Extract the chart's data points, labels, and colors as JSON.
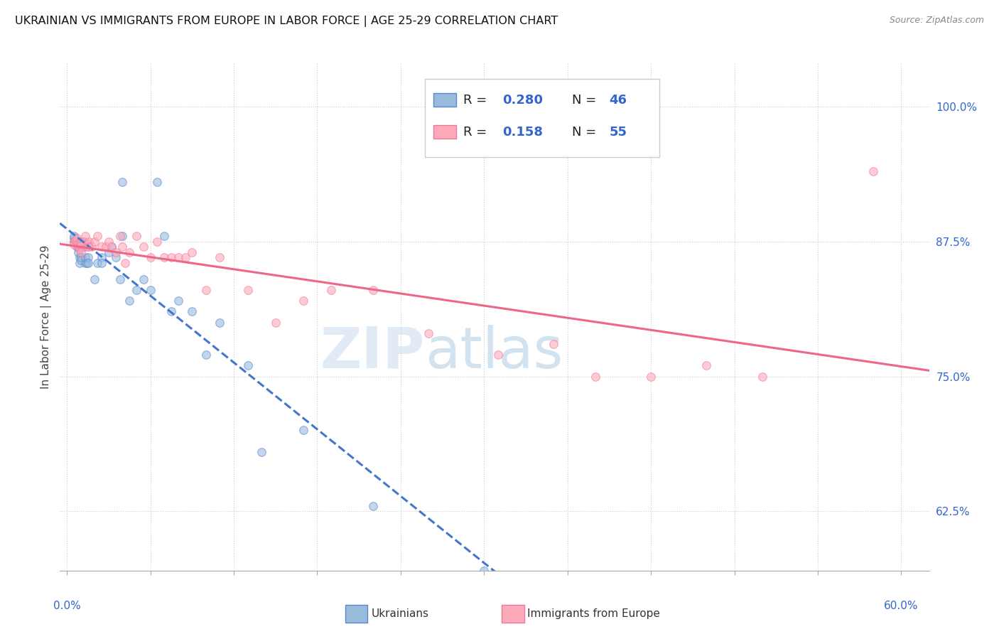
{
  "title": "UKRAINIAN VS IMMIGRANTS FROM EUROPE IN LABOR FORCE | AGE 25-29 CORRELATION CHART",
  "source": "Source: ZipAtlas.com",
  "ylabel": "In Labor Force | Age 25-29",
  "ylim": [
    0.57,
    1.04
  ],
  "xlim": [
    -0.005,
    0.62
  ],
  "legend_r1": "0.280",
  "legend_n1": "46",
  "legend_r2": "0.158",
  "legend_n2": "55",
  "blue_face_color": "#99bbdd",
  "blue_edge_color": "#5588cc",
  "pink_face_color": "#ffaabb",
  "pink_edge_color": "#ee7799",
  "blue_line_color": "#4477cc",
  "pink_line_color": "#ee6688",
  "text_blue": "#3366cc",
  "ukrainians_x": [
    0.005,
    0.005,
    0.005,
    0.007,
    0.007,
    0.008,
    0.008,
    0.008,
    0.009,
    0.009,
    0.01,
    0.01,
    0.01,
    0.012,
    0.012,
    0.013,
    0.013,
    0.014,
    0.015,
    0.015,
    0.02,
    0.022,
    0.025,
    0.025,
    0.03,
    0.032,
    0.035,
    0.038,
    0.04,
    0.04,
    0.045,
    0.05,
    0.055,
    0.06,
    0.065,
    0.07,
    0.075,
    0.08,
    0.09,
    0.1,
    0.11,
    0.13,
    0.14,
    0.17,
    0.22,
    0.3
  ],
  "ukrainians_y": [
    0.875,
    0.878,
    0.88,
    0.875,
    0.87,
    0.865,
    0.87,
    0.872,
    0.855,
    0.86,
    0.86,
    0.858,
    0.87,
    0.87,
    0.875,
    0.855,
    0.86,
    0.855,
    0.86,
    0.855,
    0.84,
    0.855,
    0.86,
    0.855,
    0.865,
    0.87,
    0.86,
    0.84,
    0.93,
    0.88,
    0.82,
    0.83,
    0.84,
    0.83,
    0.93,
    0.88,
    0.81,
    0.82,
    0.81,
    0.77,
    0.8,
    0.76,
    0.68,
    0.7,
    0.63,
    0.57
  ],
  "europe_x": [
    0.005,
    0.005,
    0.006,
    0.007,
    0.007,
    0.008,
    0.008,
    0.009,
    0.009,
    0.01,
    0.01,
    0.01,
    0.01,
    0.012,
    0.013,
    0.014,
    0.015,
    0.016,
    0.016,
    0.018,
    0.02,
    0.022,
    0.025,
    0.028,
    0.03,
    0.032,
    0.035,
    0.038,
    0.04,
    0.042,
    0.045,
    0.05,
    0.055,
    0.06,
    0.065,
    0.07,
    0.075,
    0.08,
    0.085,
    0.09,
    0.1,
    0.11,
    0.13,
    0.15,
    0.17,
    0.19,
    0.22,
    0.26,
    0.31,
    0.35,
    0.38,
    0.42,
    0.46,
    0.5,
    0.58
  ],
  "europe_y": [
    0.875,
    0.872,
    0.876,
    0.875,
    0.878,
    0.87,
    0.873,
    0.875,
    0.868,
    0.875,
    0.87,
    0.865,
    0.872,
    0.875,
    0.88,
    0.87,
    0.873,
    0.875,
    0.87,
    0.87,
    0.875,
    0.88,
    0.87,
    0.87,
    0.875,
    0.87,
    0.865,
    0.88,
    0.87,
    0.855,
    0.865,
    0.88,
    0.87,
    0.86,
    0.875,
    0.86,
    0.86,
    0.86,
    0.86,
    0.865,
    0.83,
    0.86,
    0.83,
    0.8,
    0.82,
    0.83,
    0.83,
    0.79,
    0.77,
    0.78,
    0.75,
    0.75,
    0.76,
    0.75,
    0.94
  ],
  "watermark_zip": "ZIP",
  "watermark_atlas": "atlas",
  "marker_size": 70,
  "marker_alpha": 0.6
}
